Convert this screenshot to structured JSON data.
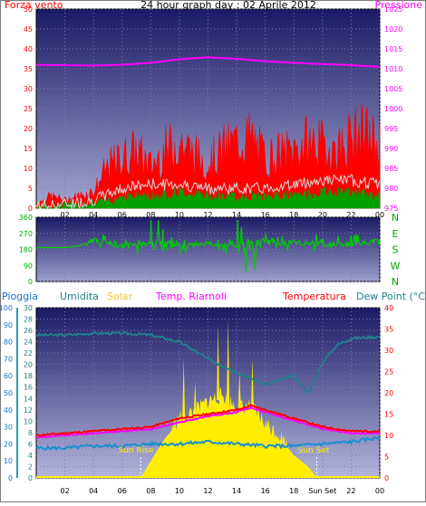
{
  "chart_data": [
    {
      "type": "line",
      "title": "24 hour graph day : 02 Aprile 2012",
      "left_label": "Forza vento",
      "right_label": "Pressione",
      "y_left": {
        "ticks": [
          0,
          5,
          10,
          15,
          20,
          25,
          30,
          35,
          40,
          45,
          50
        ],
        "range": [
          0,
          50
        ]
      },
      "y_right": {
        "ticks": [
          975,
          980,
          985,
          990,
          995,
          1000,
          1005,
          1010,
          1015,
          1020,
          1025
        ],
        "range": [
          975,
          1025
        ]
      },
      "x_ticks": [
        "02",
        "04",
        "06",
        "08",
        "10",
        "12",
        "14",
        "16",
        "18",
        "20",
        "22",
        "00"
      ],
      "series": [
        {
          "name": "Pressione",
          "color": "#ff00ff",
          "axis": "right",
          "x_hours": [
            0,
            2,
            4,
            6,
            8,
            10,
            12,
            14,
            16,
            18,
            20,
            22,
            24
          ],
          "values": [
            1011,
            1010.9,
            1010.8,
            1011,
            1011.5,
            1012.4,
            1012.9,
            1012.5,
            1011.9,
            1011.5,
            1011.2,
            1010.9,
            1010.5
          ]
        },
        {
          "color": "#ff0000",
          "axis": "left",
          "x_hours": [
            0,
            1,
            2,
            3,
            4,
            5,
            6,
            7,
            8,
            9,
            10,
            11,
            12,
            13,
            14,
            15,
            16,
            17,
            18,
            19,
            20,
            21,
            22,
            23,
            24
          ],
          "values": [
            1,
            3,
            2,
            3,
            4,
            10,
            12,
            14,
            10,
            14,
            16,
            13,
            11,
            14,
            16,
            17,
            12,
            13,
            14,
            16,
            15,
            14,
            17,
            18,
            15
          ]
        },
        {
          "color": "#c8c8c8",
          "axis": "left",
          "x_hours": [
            0,
            2,
            4,
            6,
            8,
            10,
            12,
            14,
            16,
            18,
            20,
            22,
            24
          ],
          "values": [
            0.5,
            1,
            2,
            5,
            6,
            6,
            5,
            5,
            5,
            6,
            7,
            7,
            6
          ]
        },
        {
          "color": "#00aa00",
          "axis": "left",
          "x_hours": [
            0,
            2,
            4,
            6,
            8,
            10,
            12,
            14,
            16,
            18,
            20,
            22,
            24
          ],
          "values": [
            0,
            0.5,
            1,
            3,
            3,
            4,
            3,
            3,
            3,
            3,
            4,
            4,
            3
          ]
        }
      ]
    },
    {
      "type": "line",
      "y_left": {
        "ticks": [
          0,
          90,
          180,
          270,
          360
        ],
        "range": [
          0,
          360
        ]
      },
      "y_right": {
        "labels": [
          "N",
          "W",
          "S",
          "E",
          "N"
        ]
      },
      "series": [
        {
          "color": "#00cc00",
          "x_hours": [
            0,
            2,
            3,
            4,
            6,
            8,
            10,
            12,
            14,
            16,
            18,
            20,
            22,
            24
          ],
          "values": [
            190,
            190,
            200,
            230,
            200,
            210,
            195,
            210,
            195,
            205,
            220,
            210,
            205,
            230
          ]
        }
      ]
    },
    {
      "type": "line",
      "labels": {
        "rain": "Pioggia",
        "humidity": "Umidita",
        "solar": "Solar",
        "chill": "Temp. Riarnoli",
        "temp": "Temperatura",
        "dew": "Dew Point (°C)"
      },
      "y_axes": [
        {
          "label": "Pioggia",
          "ticks": [
            0,
            10,
            20,
            30,
            40,
            50,
            60,
            70,
            80,
            90,
            100
          ]
        },
        {
          "label": "Umidita",
          "ticks": [
            0,
            2,
            4,
            6,
            8,
            10,
            12,
            14,
            16,
            18,
            20,
            22,
            24,
            26,
            28,
            30
          ]
        },
        {
          "label": "Temperatura",
          "ticks": [
            0,
            5,
            10,
            15,
            20,
            25,
            30,
            35,
            40
          ]
        }
      ],
      "x_ticks": [
        "02",
        "04",
        "06",
        "08",
        "10",
        "12",
        "14",
        "16",
        "18",
        "Sun Set",
        "22",
        "00"
      ],
      "annotations": [
        "Sun Rise",
        "Sun Set"
      ],
      "sun_rise_hour": 7.3,
      "sun_set_hour": 19.6,
      "series": [
        {
          "name": "Umidita",
          "color": "#20808a",
          "x_hours": [
            0,
            2,
            4,
            6,
            8,
            10,
            12,
            14,
            16,
            18,
            19,
            20,
            21,
            22,
            24
          ],
          "values": [
            84,
            84,
            85,
            85,
            84,
            80,
            70,
            62,
            55,
            60,
            50,
            68,
            78,
            82,
            83
          ]
        },
        {
          "name": "Temperatura",
          "color": "#ff0000",
          "x_hours": [
            0,
            2,
            4,
            6,
            8,
            10,
            12,
            14,
            15,
            16,
            18,
            20,
            22,
            24
          ],
          "values": [
            10,
            10.5,
            11,
            11.5,
            12,
            14,
            15,
            16,
            17,
            16,
            14,
            12,
            11,
            11
          ]
        },
        {
          "name": "Temp. Riarnoli",
          "color": "#ff00ff",
          "x_hours": [
            0,
            2,
            4,
            6,
            8,
            10,
            12,
            14,
            15,
            16,
            18,
            20,
            22,
            24
          ],
          "values": [
            9.5,
            10,
            10.5,
            11,
            11.5,
            13,
            14.5,
            15.5,
            16.5,
            15.5,
            13.5,
            11.5,
            10.5,
            10.5
          ]
        },
        {
          "name": "Dew Point (°C)",
          "color": "#1a8fcf",
          "x_hours": [
            0,
            2,
            4,
            6,
            8,
            10,
            12,
            14,
            16,
            18,
            20,
            22,
            24
          ],
          "values": [
            7,
            7,
            7.5,
            7.5,
            8,
            8,
            8.5,
            8,
            7.5,
            7.5,
            8,
            8.5,
            9.5
          ]
        },
        {
          "name": "Solar",
          "color": "#ffee00",
          "x_hours": [
            7.3,
            8,
            9,
            10,
            11,
            12,
            13,
            14,
            15,
            16,
            17,
            18,
            19,
            19.6
          ],
          "values": [
            0,
            3,
            7,
            10,
            11,
            13,
            14,
            12,
            12,
            9,
            7,
            4,
            2,
            0
          ]
        },
        {
          "name": "Solar peaks",
          "color": "#ffee00",
          "x_hours": [
            10.3,
            11.1,
            12.7,
            13.4,
            14.2,
            15.1
          ],
          "values": [
            21,
            17,
            27,
            28,
            19,
            21
          ]
        },
        {
          "name": "Pioggia",
          "color": "#ffee00",
          "x_hours": [
            0,
            24
          ],
          "values": [
            0,
            0
          ]
        }
      ]
    }
  ]
}
